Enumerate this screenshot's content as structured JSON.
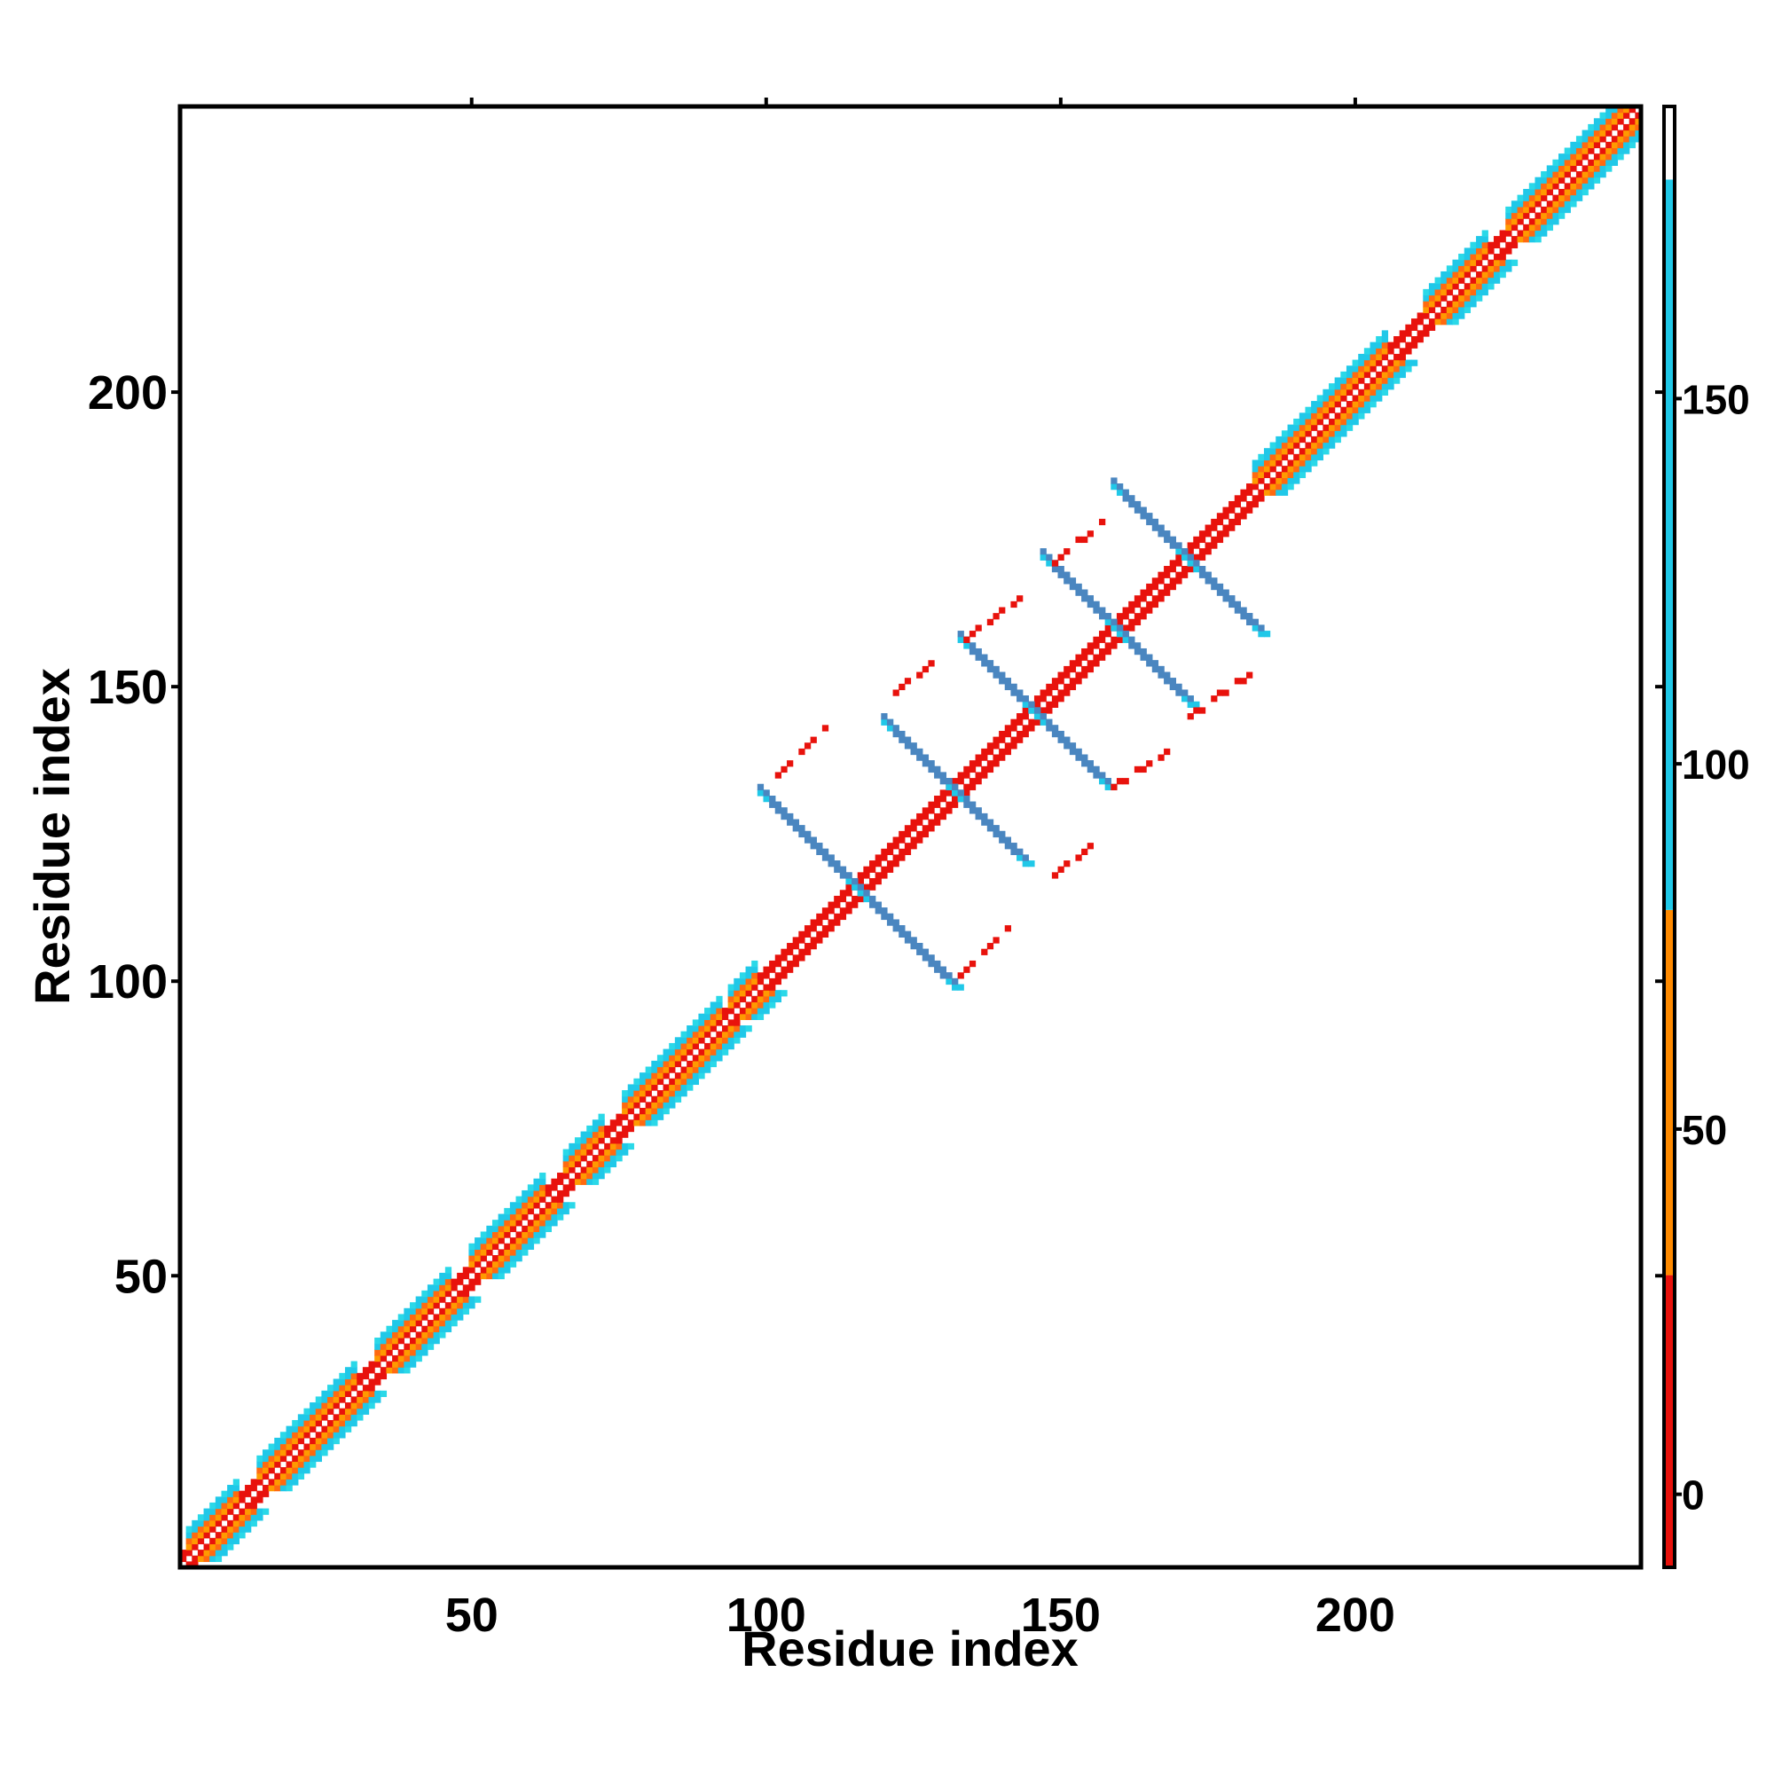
{
  "chart_data": {
    "type": "heatmap",
    "title": "",
    "xlabel": "Residue index",
    "ylabel": "Residue index",
    "xlim": [
      1,
      248
    ],
    "ylim": [
      1,
      248
    ],
    "x_ticks": [
      50,
      100,
      150,
      200
    ],
    "y_ticks": [
      50,
      100,
      150,
      200
    ],
    "colorbar": {
      "range": [
        -10,
        190
      ],
      "ticks": [
        0,
        50,
        100,
        150
      ],
      "colors": [
        {
          "from": -10,
          "to": 30,
          "color": "#e8120c"
        },
        {
          "from": 30,
          "to": 80,
          "color": "#ff8a00"
        },
        {
          "from": 80,
          "to": 180,
          "color": "#20c8e8"
        },
        {
          "from": 180,
          "to": 190,
          "color": "#ffffff"
        }
      ]
    },
    "legend_placement": "right (colorbar)",
    "grid": false,
    "features": {
      "diagonal_band_colors": [
        "#e8120c",
        "#ff6a10",
        "#ff9a00",
        "#20c8e8",
        "#2ad8e8"
      ],
      "helix_segments": [
        [
          2,
          10
        ],
        [
          14,
          30
        ],
        [
          34,
          46
        ],
        [
          50,
          62
        ],
        [
          66,
          72
        ],
        [
          76,
          92
        ],
        [
          94,
          98
        ],
        [
          183,
          205
        ],
        [
          212,
          222
        ],
        [
          226,
          248
        ]
      ],
      "strand_segment_diagonal": [
        [
          99,
          183
        ]
      ],
      "antiparallel_strands": [
        {
          "x_start": 99,
          "y_start": 132,
          "x_end": 132,
          "y_end": 99
        },
        {
          "x_start": 120,
          "y_start": 144,
          "x_end": 144,
          "y_end": 120
        },
        {
          "x_start": 133,
          "y_start": 158,
          "x_end": 158,
          "y_end": 133
        },
        {
          "x_start": 147,
          "y_start": 172,
          "x_end": 172,
          "y_end": 147
        },
        {
          "x_start": 159,
          "y_start": 184,
          "x_end": 184,
          "y_end": 159
        }
      ],
      "parallel_red_segments": [
        {
          "x": [
            102,
            110
          ],
          "y": [
            135,
            143
          ]
        },
        {
          "x": [
            133,
            141
          ],
          "y": [
            101,
            109
          ]
        },
        {
          "x": [
            122,
            128
          ],
          "y": [
            149,
            154
          ]
        },
        {
          "x": [
            149,
            156
          ],
          "y": [
            118,
            124
          ]
        },
        {
          "x": [
            134,
            143
          ],
          "y": [
            158,
            165
          ]
        },
        {
          "x": [
            159,
            168
          ],
          "y": [
            133,
            139
          ]
        },
        {
          "x": [
            149,
            157
          ],
          "y": [
            171,
            178
          ]
        },
        {
          "x": [
            172,
            182
          ],
          "y": [
            145,
            152
          ]
        }
      ],
      "strand_color": "#4a86c0",
      "strand_edge_color": "#20c8e8"
    }
  }
}
